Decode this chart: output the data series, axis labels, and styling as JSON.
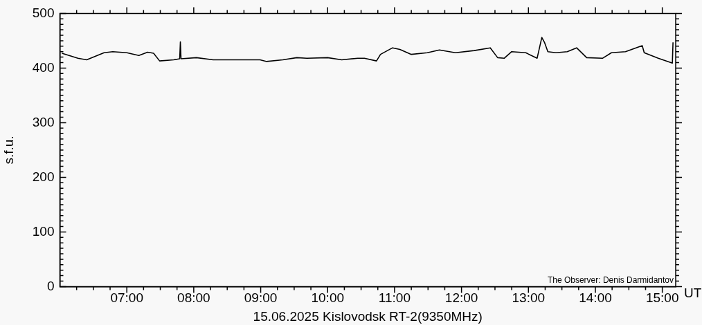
{
  "chart_data": {
    "type": "line",
    "xlabel": "15.06.2025 Kislovodsk RT-2(9350MHz)",
    "ylabel": "s.f.u.",
    "annotations": [
      "The Observer: Denis Darmidantov",
      "UT"
    ],
    "legend": false,
    "marker": "none",
    "line_style": "solid",
    "xlim": [
      6.0,
      15.2
    ],
    "ylim": [
      0,
      500
    ],
    "xticks": [
      {
        "value": 6.25,
        "label": null
      },
      {
        "value": 6.5,
        "label": null
      },
      {
        "value": 6.75,
        "label": null
      },
      {
        "value": 7,
        "label": "07:00"
      },
      {
        "value": 7.25,
        "label": null
      },
      {
        "value": 7.5,
        "label": null
      },
      {
        "value": 7.75,
        "label": null
      },
      {
        "value": 8,
        "label": "08:00"
      },
      {
        "value": 8.25,
        "label": null
      },
      {
        "value": 8.5,
        "label": null
      },
      {
        "value": 8.75,
        "label": null
      },
      {
        "value": 9,
        "label": "09:00"
      },
      {
        "value": 9.25,
        "label": null
      },
      {
        "value": 9.5,
        "label": null
      },
      {
        "value": 9.75,
        "label": null
      },
      {
        "value": 10,
        "label": "10:00"
      },
      {
        "value": 10.25,
        "label": null
      },
      {
        "value": 10.5,
        "label": null
      },
      {
        "value": 10.75,
        "label": null
      },
      {
        "value": 11,
        "label": "11:00"
      },
      {
        "value": 11.25,
        "label": null
      },
      {
        "value": 11.5,
        "label": null
      },
      {
        "value": 11.75,
        "label": null
      },
      {
        "value": 12,
        "label": "12:00"
      },
      {
        "value": 12.25,
        "label": null
      },
      {
        "value": 12.5,
        "label": null
      },
      {
        "value": 12.75,
        "label": null
      },
      {
        "value": 13,
        "label": "13:00"
      },
      {
        "value": 13.25,
        "label": null
      },
      {
        "value": 13.5,
        "label": null
      },
      {
        "value": 13.75,
        "label": null
      },
      {
        "value": 14,
        "label": "14:00"
      },
      {
        "value": 14.25,
        "label": null
      },
      {
        "value": 14.5,
        "label": null
      },
      {
        "value": 14.75,
        "label": null
      },
      {
        "value": 15,
        "label": "15:00"
      }
    ],
    "yticks": [
      0,
      {
        "value": 10,
        "label": null
      },
      {
        "value": 20,
        "label": null
      },
      {
        "value": 30,
        "label": null
      },
      {
        "value": 40,
        "label": null
      },
      {
        "value": 50,
        "label": null
      },
      {
        "value": 60,
        "label": null
      },
      {
        "value": 70,
        "label": null
      },
      {
        "value": 80,
        "label": null
      },
      {
        "value": 90,
        "label": null
      },
      100,
      {
        "value": 110,
        "label": null
      },
      {
        "value": 120,
        "label": null
      },
      {
        "value": 130,
        "label": null
      },
      {
        "value": 140,
        "label": null
      },
      {
        "value": 150,
        "label": null
      },
      {
        "value": 160,
        "label": null
      },
      {
        "value": 170,
        "label": null
      },
      {
        "value": 180,
        "label": null
      },
      {
        "value": 190,
        "label": null
      },
      200,
      {
        "value": 210,
        "label": null
      },
      {
        "value": 220,
        "label": null
      },
      {
        "value": 230,
        "label": null
      },
      {
        "value": 240,
        "label": null
      },
      {
        "value": 250,
        "label": null
      },
      {
        "value": 260,
        "label": null
      },
      {
        "value": 270,
        "label": null
      },
      {
        "value": 280,
        "label": null
      },
      {
        "value": 290,
        "label": null
      },
      300,
      {
        "value": 310,
        "label": null
      },
      {
        "value": 320,
        "label": null
      },
      {
        "value": 330,
        "label": null
      },
      {
        "value": 340,
        "label": null
      },
      {
        "value": 350,
        "label": null
      },
      {
        "value": 360,
        "label": null
      },
      {
        "value": 370,
        "label": null
      },
      {
        "value": 380,
        "label": null
      },
      {
        "value": 390,
        "label": null
      },
      400,
      {
        "value": 410,
        "label": null
      },
      {
        "value": 420,
        "label": null
      },
      {
        "value": 430,
        "label": null
      },
      {
        "value": 440,
        "label": null
      },
      {
        "value": 450,
        "label": null
      },
      {
        "value": 460,
        "label": null
      },
      {
        "value": 470,
        "label": null
      },
      {
        "value": 480,
        "label": null
      },
      {
        "value": 490,
        "label": null
      },
      500
    ],
    "series": [
      {
        "color": "#000000",
        "x": [
          6.03,
          6.27,
          6.4,
          6.66,
          6.79,
          7.0,
          7.18,
          7.31,
          7.4,
          7.49,
          7.7,
          7.79,
          7.8,
          7.81,
          8.04,
          8.29,
          8.64,
          8.99,
          9.09,
          9.33,
          9.54,
          9.69,
          10.0,
          10.21,
          10.45,
          10.55,
          10.73,
          10.79,
          10.97,
          11.08,
          11.25,
          11.49,
          11.67,
          11.91,
          12.19,
          12.43,
          12.54,
          12.64,
          12.75,
          12.96,
          13.13,
          13.2,
          13.24,
          13.29,
          13.41,
          13.58,
          13.72,
          13.87,
          14.11,
          14.24,
          14.45,
          14.7,
          14.73,
          14.94,
          15.15,
          15.16
        ],
        "values": [
          427,
          418,
          415,
          428,
          430,
          428,
          423,
          429,
          427,
          413,
          415,
          417,
          448,
          417,
          419,
          415,
          415,
          415,
          412,
          415,
          419,
          418,
          419,
          415,
          418,
          418,
          413,
          425,
          437,
          434,
          425,
          428,
          433,
          428,
          432,
          437,
          419,
          418,
          430,
          428,
          418,
          456,
          447,
          430,
          428,
          430,
          437,
          419,
          418,
          428,
          430,
          441,
          428,
          418,
          409,
          447
        ]
      }
    ]
  }
}
